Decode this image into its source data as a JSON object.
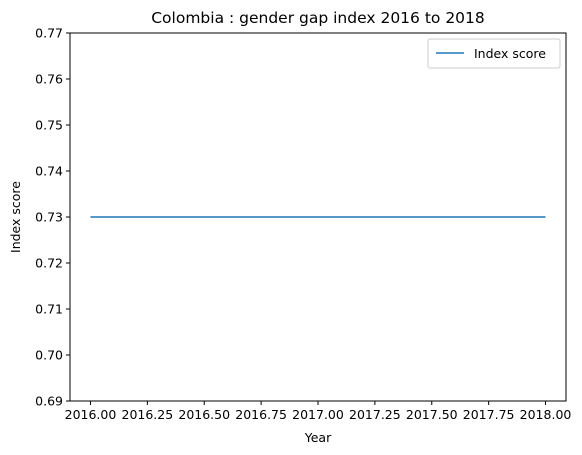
{
  "chart_data": {
    "type": "line",
    "title": "Colombia : gender gap index 2016 to 2018",
    "xlabel": "Year",
    "ylabel": "Index score",
    "xlim": [
      2015.91,
      2018.09
    ],
    "ylim": [
      0.69,
      0.77
    ],
    "xticks": [
      "2016.00",
      "2016.25",
      "2016.50",
      "2016.75",
      "2017.00",
      "2017.25",
      "2017.50",
      "2017.75",
      "2018.00"
    ],
    "yticks": [
      "0.69",
      "0.70",
      "0.71",
      "0.72",
      "0.73",
      "0.74",
      "0.75",
      "0.76",
      "0.77"
    ],
    "legend_position": "top-right",
    "grid": false,
    "series": [
      {
        "name": "Index score",
        "color": "#1f77b4",
        "x": [
          2016,
          2017,
          2018
        ],
        "y": [
          0.73,
          0.73,
          0.73
        ]
      }
    ]
  }
}
